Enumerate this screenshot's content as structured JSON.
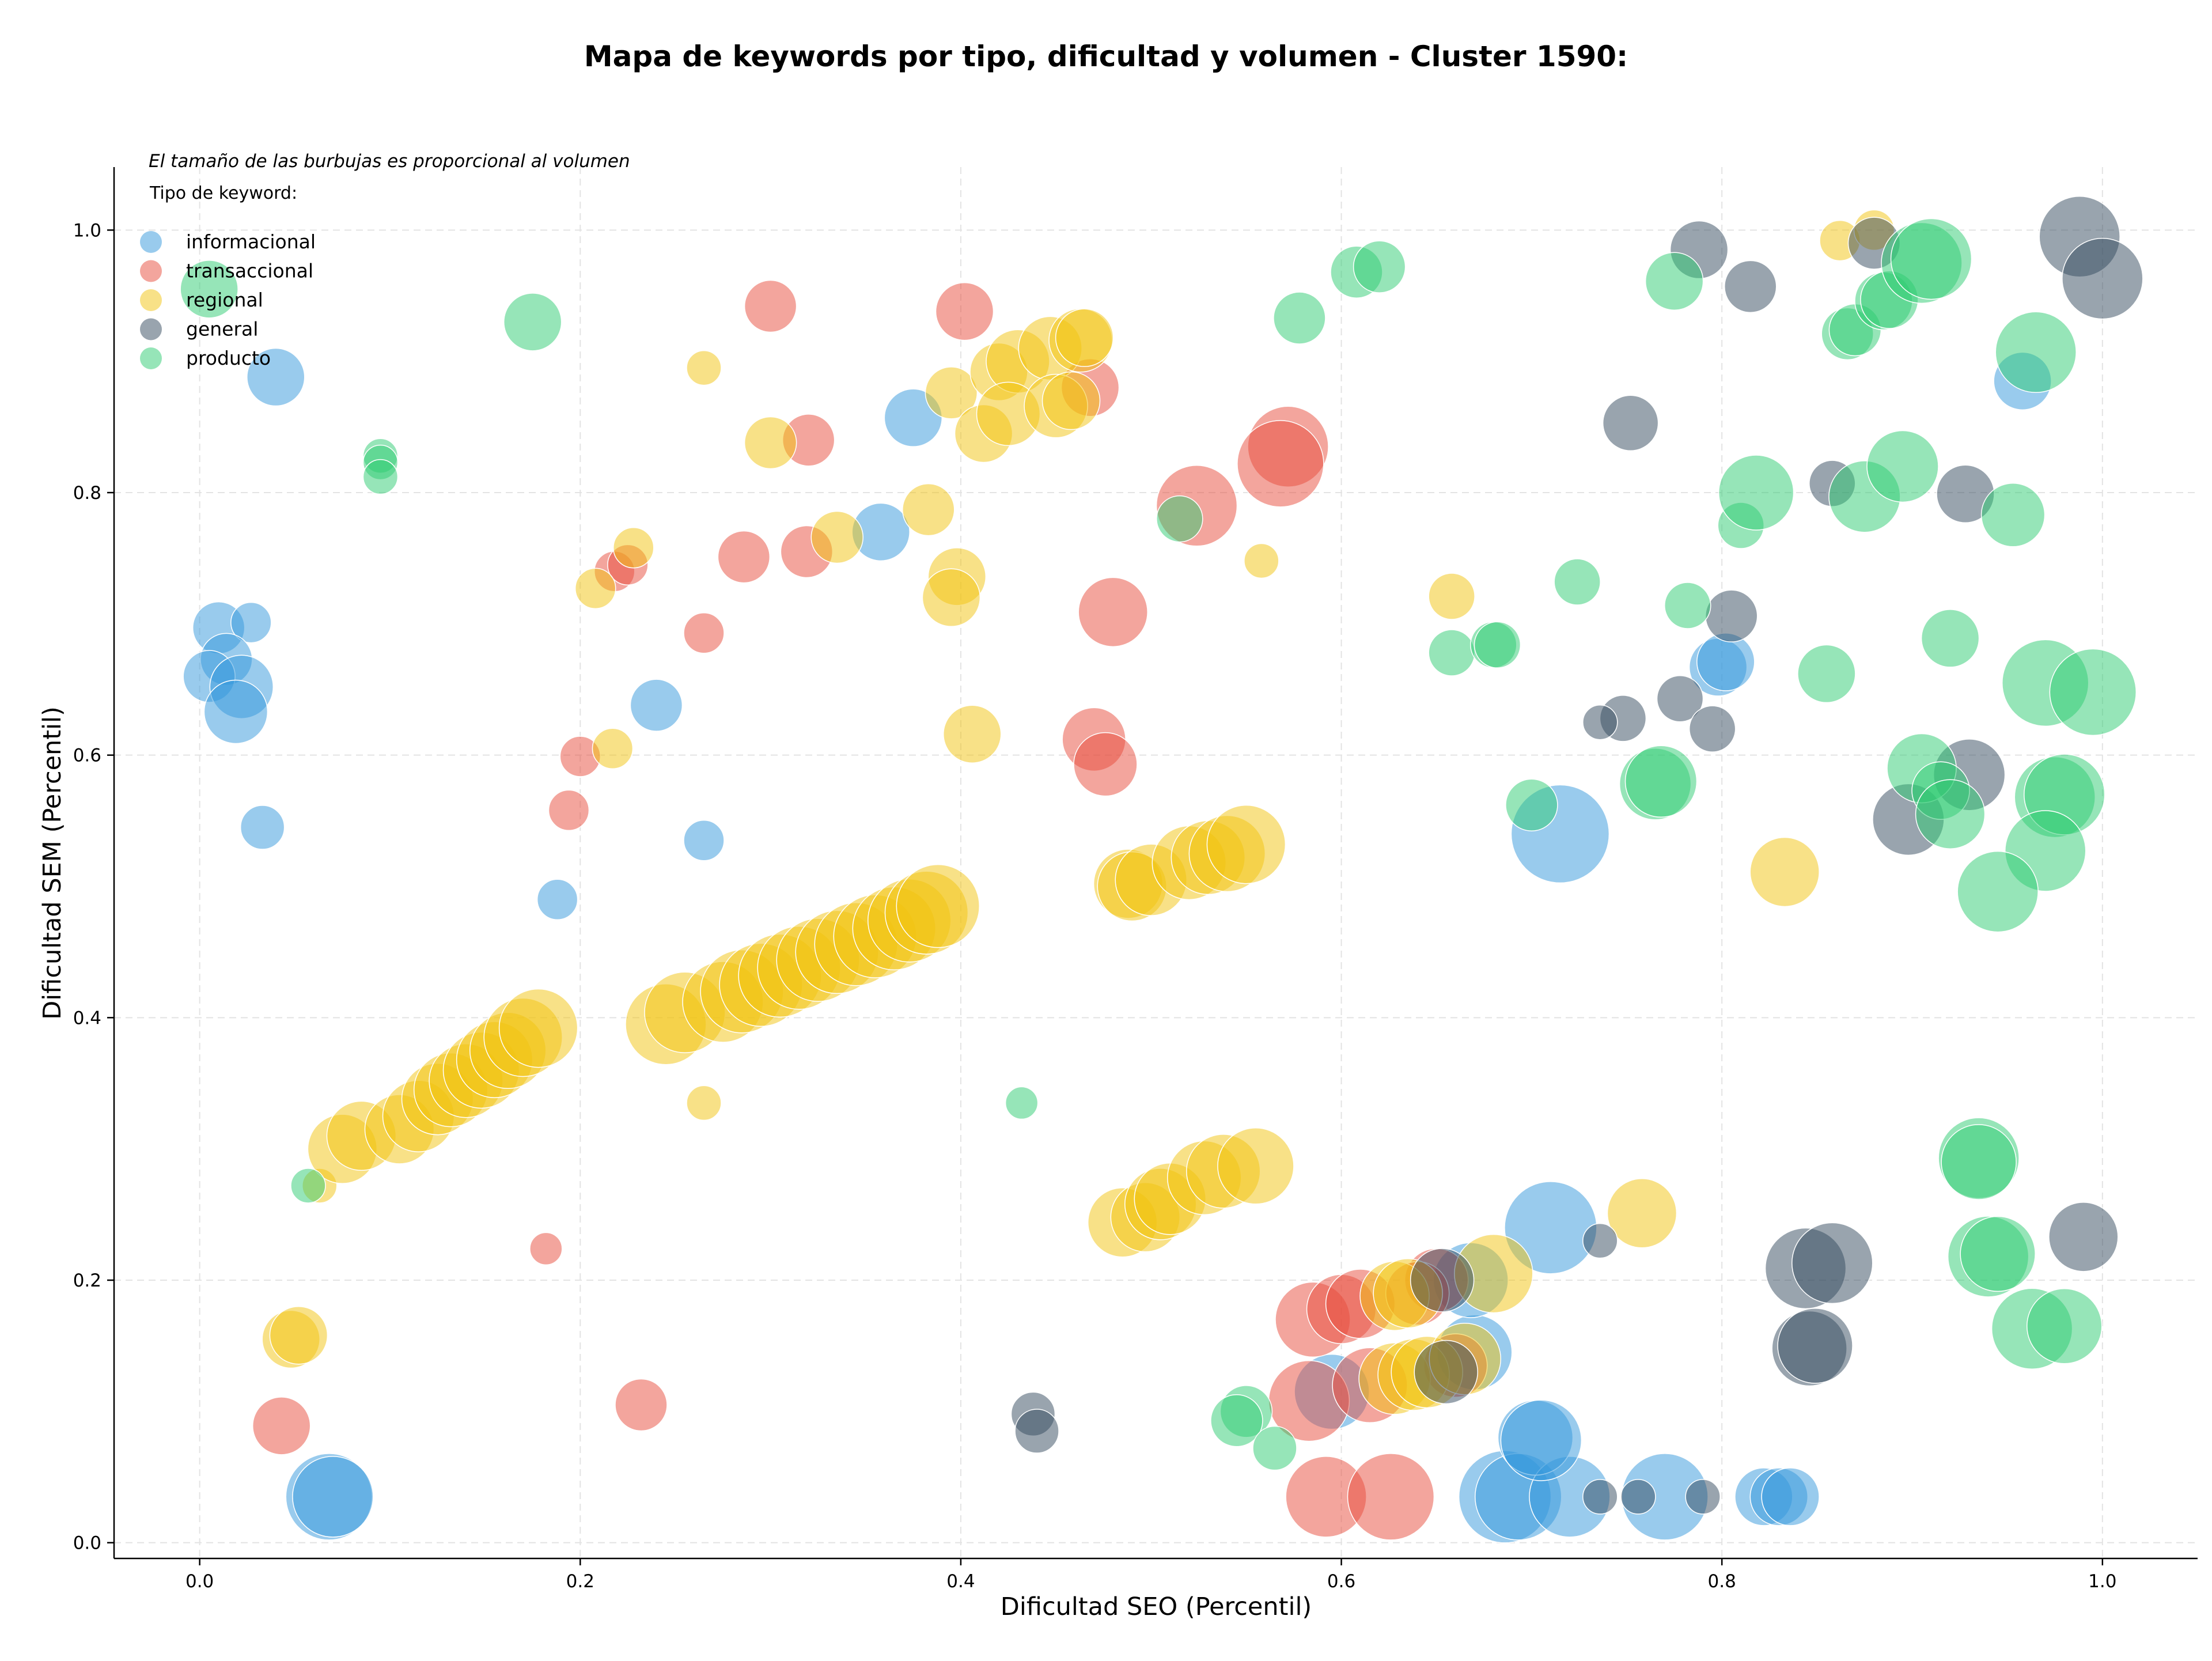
{
  "chart_data": {
    "type": "scatter",
    "title": "Mapa de keywords por tipo, dificultad y volumen - Cluster 1590:",
    "xlabel": "Dificultad SEO (Percentil)",
    "ylabel": "Dificultad SEM (Percentil)",
    "xlim": [
      -0.045,
      1.05
    ],
    "ylim": [
      -0.012,
      1.048
    ],
    "xticks": [
      "0.0",
      "0.2",
      "0.4",
      "0.6",
      "0.8",
      "1.0"
    ],
    "yticks": [
      "0.0",
      "0.2",
      "0.4",
      "0.6",
      "0.8",
      "1.0"
    ],
    "grid": true,
    "legend_placement": "top-left",
    "legend_title": "Tipo de keyword:",
    "annotation": "El tamaño de las burbujas es proporcional al volumen",
    "series": [
      {
        "name": "informacional",
        "color": "#3498db",
        "points": [
          [
            0.04,
            0.888,
            50
          ],
          [
            0.01,
            0.697,
            45
          ],
          [
            0.027,
            0.701,
            35
          ],
          [
            0.014,
            0.673,
            45
          ],
          [
            0.005,
            0.66,
            45
          ],
          [
            0.022,
            0.652,
            55
          ],
          [
            0.019,
            0.633,
            55
          ],
          [
            0.033,
            0.545,
            38
          ],
          [
            0.24,
            0.638,
            45
          ],
          [
            0.188,
            0.49,
            35
          ],
          [
            0.265,
            0.535,
            35
          ],
          [
            0.375,
            0.857,
            50
          ],
          [
            0.358,
            0.77,
            50
          ],
          [
            0.068,
            0.035,
            75
          ],
          [
            0.07,
            0.035,
            70
          ],
          [
            0.686,
            0.035,
            80
          ],
          [
            0.693,
            0.035,
            75
          ],
          [
            0.72,
            0.035,
            70
          ],
          [
            0.77,
            0.035,
            75
          ],
          [
            0.822,
            0.035,
            50
          ],
          [
            0.83,
            0.035,
            50
          ],
          [
            0.836,
            0.035,
            50
          ],
          [
            0.702,
            0.08,
            65
          ],
          [
            0.705,
            0.078,
            70
          ],
          [
            0.71,
            0.24,
            80
          ],
          [
            0.715,
            0.54,
            85
          ],
          [
            0.67,
            0.145,
            65
          ],
          [
            0.668,
            0.2,
            65
          ],
          [
            0.595,
            0.115,
            65
          ],
          [
            0.798,
            0.667,
            50
          ],
          [
            0.802,
            0.671,
            50
          ],
          [
            0.958,
            0.885,
            50
          ]
        ]
      },
      {
        "name": "transaccional",
        "color": "#e74c3c",
        "points": [
          [
            0.3,
            0.942,
            45
          ],
          [
            0.402,
            0.938,
            50
          ],
          [
            0.32,
            0.84,
            45
          ],
          [
            0.468,
            0.88,
            50
          ],
          [
            0.572,
            0.835,
            70
          ],
          [
            0.568,
            0.822,
            75
          ],
          [
            0.524,
            0.79,
            70
          ],
          [
            0.286,
            0.751,
            45
          ],
          [
            0.319,
            0.755,
            45
          ],
          [
            0.218,
            0.74,
            35
          ],
          [
            0.225,
            0.745,
            35
          ],
          [
            0.265,
            0.693,
            35
          ],
          [
            0.48,
            0.709,
            60
          ],
          [
            0.47,
            0.612,
            55
          ],
          [
            0.476,
            0.593,
            55
          ],
          [
            0.2,
            0.599,
            35
          ],
          [
            0.194,
            0.558,
            35
          ],
          [
            0.182,
            0.224,
            28
          ],
          [
            0.232,
            0.105,
            45
          ],
          [
            0.043,
            0.089,
            50
          ],
          [
            0.592,
            0.035,
            70
          ],
          [
            0.626,
            0.035,
            75
          ],
          [
            0.583,
            0.108,
            70
          ],
          [
            0.615,
            0.12,
            65
          ],
          [
            0.585,
            0.17,
            65
          ],
          [
            0.6,
            0.178,
            60
          ],
          [
            0.61,
            0.182,
            60
          ],
          [
            0.65,
            0.2,
            55
          ],
          [
            0.64,
            0.19,
            55
          ],
          [
            0.66,
            0.135,
            55
          ]
        ]
      },
      {
        "name": "regional",
        "color": "#f1c40f",
        "points": [
          [
            0.265,
            0.895,
            30
          ],
          [
            0.3,
            0.838,
            45
          ],
          [
            0.395,
            0.876,
            45
          ],
          [
            0.42,
            0.892,
            50
          ],
          [
            0.43,
            0.9,
            55
          ],
          [
            0.447,
            0.91,
            55
          ],
          [
            0.463,
            0.916,
            55
          ],
          [
            0.465,
            0.918,
            50
          ],
          [
            0.412,
            0.845,
            50
          ],
          [
            0.425,
            0.86,
            55
          ],
          [
            0.45,
            0.866,
            55
          ],
          [
            0.458,
            0.87,
            50
          ],
          [
            0.383,
            0.787,
            45
          ],
          [
            0.398,
            0.736,
            50
          ],
          [
            0.395,
            0.72,
            50
          ],
          [
            0.335,
            0.766,
            45
          ],
          [
            0.228,
            0.758,
            35
          ],
          [
            0.208,
            0.727,
            35
          ],
          [
            0.217,
            0.605,
            35
          ],
          [
            0.406,
            0.616,
            50
          ],
          [
            0.558,
            0.748,
            30
          ],
          [
            0.658,
            0.721,
            40
          ],
          [
            0.758,
            0.251,
            60
          ],
          [
            0.833,
            0.511,
            60
          ],
          [
            0.862,
            0.992,
            35
          ],
          [
            0.88,
            1.0,
            35
          ],
          [
            0.265,
            0.335,
            30
          ],
          [
            0.063,
            0.272,
            30
          ],
          [
            0.048,
            0.155,
            50
          ],
          [
            0.052,
            0.158,
            50
          ],
          [
            0.075,
            0.3,
            60
          ],
          [
            0.085,
            0.31,
            60
          ],
          [
            0.105,
            0.315,
            60
          ],
          [
            0.115,
            0.325,
            62
          ],
          [
            0.125,
            0.338,
            62
          ],
          [
            0.132,
            0.345,
            64
          ],
          [
            0.14,
            0.352,
            64
          ],
          [
            0.148,
            0.36,
            66
          ],
          [
            0.155,
            0.368,
            66
          ],
          [
            0.162,
            0.375,
            66
          ],
          [
            0.17,
            0.385,
            68
          ],
          [
            0.178,
            0.392,
            68
          ],
          [
            0.245,
            0.395,
            70
          ],
          [
            0.255,
            0.404,
            70
          ],
          [
            0.275,
            0.412,
            70
          ],
          [
            0.285,
            0.42,
            72
          ],
          [
            0.295,
            0.425,
            72
          ],
          [
            0.305,
            0.432,
            72
          ],
          [
            0.315,
            0.438,
            72
          ],
          [
            0.325,
            0.444,
            72
          ],
          [
            0.335,
            0.45,
            72
          ],
          [
            0.345,
            0.456,
            72
          ],
          [
            0.355,
            0.462,
            72
          ],
          [
            0.365,
            0.468,
            72
          ],
          [
            0.373,
            0.474,
            72
          ],
          [
            0.382,
            0.48,
            72
          ],
          [
            0.388,
            0.485,
            72
          ],
          [
            0.485,
            0.244,
            60
          ],
          [
            0.497,
            0.248,
            60
          ],
          [
            0.505,
            0.258,
            62
          ],
          [
            0.51,
            0.262,
            62
          ],
          [
            0.528,
            0.278,
            64
          ],
          [
            0.538,
            0.283,
            64
          ],
          [
            0.555,
            0.287,
            66
          ],
          [
            0.488,
            0.502,
            60
          ],
          [
            0.49,
            0.5,
            60
          ],
          [
            0.5,
            0.505,
            62
          ],
          [
            0.52,
            0.518,
            64
          ],
          [
            0.53,
            0.522,
            64
          ],
          [
            0.54,
            0.525,
            66
          ],
          [
            0.55,
            0.532,
            68
          ],
          [
            0.628,
            0.188,
            60
          ],
          [
            0.635,
            0.19,
            60
          ],
          [
            0.628,
            0.125,
            62
          ],
          [
            0.638,
            0.128,
            62
          ],
          [
            0.645,
            0.13,
            62
          ],
          [
            0.665,
            0.14,
            62
          ],
          [
            0.68,
            0.205,
            68
          ]
        ]
      },
      {
        "name": "general",
        "color": "#34495e",
        "points": [
          [
            0.788,
            0.985,
            50
          ],
          [
            0.815,
            0.957,
            45
          ],
          [
            0.88,
            0.99,
            45
          ],
          [
            0.988,
            0.995,
            70
          ],
          [
            1.0,
            0.963,
            70
          ],
          [
            0.752,
            0.853,
            48
          ],
          [
            0.858,
            0.807,
            40
          ],
          [
            0.928,
            0.799,
            50
          ],
          [
            0.805,
            0.706,
            45
          ],
          [
            0.778,
            0.643,
            40
          ],
          [
            0.748,
            0.628,
            40
          ],
          [
            0.736,
            0.625,
            30
          ],
          [
            0.795,
            0.62,
            40
          ],
          [
            0.898,
            0.551,
            62
          ],
          [
            0.93,
            0.585,
            62
          ],
          [
            0.99,
            0.233,
            60
          ],
          [
            0.844,
            0.209,
            70
          ],
          [
            0.858,
            0.213,
            70
          ],
          [
            0.846,
            0.148,
            65
          ],
          [
            0.849,
            0.15,
            65
          ],
          [
            0.736,
            0.23,
            30
          ],
          [
            0.438,
            0.098,
            38
          ],
          [
            0.44,
            0.085,
            38
          ],
          [
            0.736,
            0.035,
            30
          ],
          [
            0.756,
            0.035,
            30
          ],
          [
            0.79,
            0.035,
            30
          ],
          [
            0.653,
            0.2,
            55
          ],
          [
            0.655,
            0.13,
            55
          ]
        ]
      },
      {
        "name": "producto",
        "color": "#2ecc71",
        "points": [
          [
            0.005,
            0.955,
            50
          ],
          [
            0.175,
            0.93,
            50
          ],
          [
            0.095,
            0.828,
            30
          ],
          [
            0.095,
            0.823,
            30
          ],
          [
            0.095,
            0.812,
            30
          ],
          [
            0.578,
            0.933,
            45
          ],
          [
            0.608,
            0.968,
            45
          ],
          [
            0.62,
            0.972,
            45
          ],
          [
            0.515,
            0.78,
            40
          ],
          [
            0.658,
            0.678,
            40
          ],
          [
            0.68,
            0.684,
            40
          ],
          [
            0.682,
            0.684,
            40
          ],
          [
            0.724,
            0.732,
            40
          ],
          [
            0.775,
            0.961,
            50
          ],
          [
            0.782,
            0.714,
            40
          ],
          [
            0.81,
            0.775,
            40
          ],
          [
            0.818,
            0.8,
            65
          ],
          [
            0.866,
            0.921,
            45
          ],
          [
            0.87,
            0.924,
            45
          ],
          [
            0.885,
            0.946,
            50
          ],
          [
            0.888,
            0.947,
            50
          ],
          [
            0.875,
            0.797,
            62
          ],
          [
            0.895,
            0.82,
            62
          ],
          [
            0.905,
            0.975,
            70
          ],
          [
            0.91,
            0.978,
            70
          ],
          [
            0.953,
            0.783,
            55
          ],
          [
            0.965,
            0.907,
            70
          ],
          [
            0.855,
            0.662,
            50
          ],
          [
            0.92,
            0.689,
            50
          ],
          [
            0.97,
            0.655,
            75
          ],
          [
            0.995,
            0.648,
            75
          ],
          [
            0.765,
            0.578,
            62
          ],
          [
            0.768,
            0.58,
            62
          ],
          [
            0.7,
            0.562,
            45
          ],
          [
            0.905,
            0.59,
            60
          ],
          [
            0.915,
            0.573,
            50
          ],
          [
            0.92,
            0.555,
            60
          ],
          [
            0.975,
            0.568,
            70
          ],
          [
            0.98,
            0.57,
            70
          ],
          [
            0.97,
            0.527,
            70
          ],
          [
            0.945,
            0.496,
            70
          ],
          [
            0.935,
            0.293,
            70
          ],
          [
            0.935,
            0.29,
            65
          ],
          [
            0.94,
            0.218,
            70
          ],
          [
            0.945,
            0.22,
            65
          ],
          [
            0.963,
            0.163,
            70
          ],
          [
            0.98,
            0.165,
            65
          ],
          [
            0.55,
            0.1,
            45
          ],
          [
            0.545,
            0.093,
            45
          ],
          [
            0.565,
            0.072,
            38
          ],
          [
            0.432,
            0.335,
            28
          ],
          [
            0.057,
            0.272,
            30
          ]
        ]
      }
    ]
  }
}
